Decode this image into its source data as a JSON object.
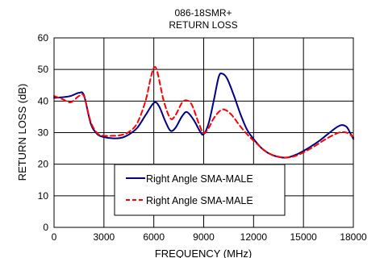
{
  "chart_data": {
    "type": "line",
    "title": "086-18SMR+",
    "subtitle": "RETURN LOSS",
    "xlabel": "FREQUENCY (MHz)",
    "ylabel": "RETURN LOSS (dB)",
    "xlim": [
      0,
      18000
    ],
    "ylim": [
      0,
      60
    ],
    "xticks": [
      0,
      3000,
      6000,
      9000,
      12000,
      15000,
      18000
    ],
    "yticks": [
      0,
      10,
      20,
      30,
      40,
      50,
      60
    ],
    "grid": true,
    "legend_position": "bottom-left",
    "series": [
      {
        "name": "Right Angle SMA-MALE",
        "color": "#000080",
        "style": "solid",
        "points": [
          [
            0,
            41
          ],
          [
            500,
            41.2
          ],
          [
            1000,
            41.6
          ],
          [
            1500,
            42.6
          ],
          [
            1800,
            41.8
          ],
          [
            2200,
            33
          ],
          [
            2600,
            29.5
          ],
          [
            3000,
            28.6
          ],
          [
            3500,
            28.2
          ],
          [
            4000,
            28.3
          ],
          [
            4500,
            29.4
          ],
          [
            5000,
            31.5
          ],
          [
            5500,
            35.5
          ],
          [
            6000,
            39.4
          ],
          [
            6300,
            38.5
          ],
          [
            6700,
            33.5
          ],
          [
            7000,
            30.6
          ],
          [
            7300,
            31.5
          ],
          [
            7700,
            35.2
          ],
          [
            8000,
            36.5
          ],
          [
            8400,
            34
          ],
          [
            8800,
            30.2
          ],
          [
            9000,
            29.5
          ],
          [
            9300,
            33
          ],
          [
            9600,
            40
          ],
          [
            9900,
            47.6
          ],
          [
            10100,
            48.7
          ],
          [
            10400,
            47.2
          ],
          [
            10800,
            42
          ],
          [
            11200,
            36
          ],
          [
            11600,
            31
          ],
          [
            12000,
            28
          ],
          [
            12500,
            25
          ],
          [
            13000,
            23.2
          ],
          [
            13500,
            22.3
          ],
          [
            14000,
            22.1
          ],
          [
            14500,
            22.9
          ],
          [
            15000,
            24.2
          ],
          [
            15500,
            25.8
          ],
          [
            16000,
            27.6
          ],
          [
            16500,
            29.7
          ],
          [
            17000,
            31.7
          ],
          [
            17300,
            32.4
          ],
          [
            17600,
            31.8
          ],
          [
            17800,
            30
          ],
          [
            18000,
            28
          ]
        ]
      },
      {
        "name": "Right Angle SMA-MALE",
        "color": "#ff0000",
        "style": "dashed",
        "points": [
          [
            0,
            41.6
          ],
          [
            500,
            40.6
          ],
          [
            1000,
            39.6
          ],
          [
            1500,
            41.6
          ],
          [
            1800,
            41.5
          ],
          [
            2200,
            33.5
          ],
          [
            2600,
            29.8
          ],
          [
            3000,
            29
          ],
          [
            3500,
            29
          ],
          [
            4000,
            29.2
          ],
          [
            4500,
            30.2
          ],
          [
            5000,
            33
          ],
          [
            5500,
            40
          ],
          [
            5800,
            47
          ],
          [
            6000,
            50.5
          ],
          [
            6200,
            49.5
          ],
          [
            6600,
            40
          ],
          [
            7000,
            34.5
          ],
          [
            7300,
            35.5
          ],
          [
            7700,
            39.5
          ],
          [
            8000,
            40.2
          ],
          [
            8300,
            38.7
          ],
          [
            8700,
            33
          ],
          [
            9000,
            29.8
          ],
          [
            9300,
            31.5
          ],
          [
            9600,
            34.5
          ],
          [
            10000,
            37
          ],
          [
            10300,
            37.2
          ],
          [
            10700,
            35.5
          ],
          [
            11200,
            32
          ],
          [
            11700,
            29
          ],
          [
            12200,
            26.5
          ],
          [
            12700,
            24.2
          ],
          [
            13200,
            22.8
          ],
          [
            13700,
            22.2
          ],
          [
            14200,
            22.2
          ],
          [
            14700,
            23
          ],
          [
            15200,
            24.3
          ],
          [
            15700,
            25.8
          ],
          [
            16200,
            27.5
          ],
          [
            16700,
            29
          ],
          [
            17200,
            30.1
          ],
          [
            17600,
            30
          ],
          [
            17900,
            29
          ],
          [
            18000,
            28.5
          ]
        ]
      }
    ]
  }
}
